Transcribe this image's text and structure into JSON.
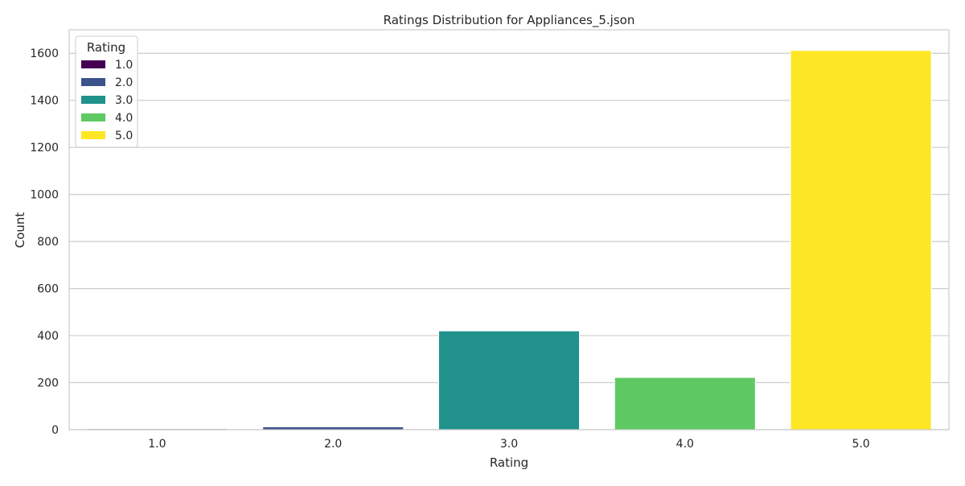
{
  "chart_data": {
    "type": "bar",
    "title": "Ratings Distribution for Appliances_5.json",
    "xlabel": "Rating",
    "ylabel": "Count",
    "ylim": [
      0,
      1700
    ],
    "yticks": [
      0,
      200,
      400,
      600,
      800,
      1000,
      1200,
      1400,
      1600
    ],
    "categories": [
      "1.0",
      "2.0",
      "3.0",
      "4.0",
      "5.0"
    ],
    "values": [
      4,
      12,
      420,
      222,
      1612
    ],
    "colors": [
      "#440154",
      "#3b528b",
      "#21918c",
      "#5ec962",
      "#fde725"
    ],
    "grid": true,
    "legend": {
      "title": "Rating",
      "placement": "top-left",
      "entries": [
        "1.0",
        "2.0",
        "3.0",
        "4.0",
        "5.0"
      ]
    }
  }
}
